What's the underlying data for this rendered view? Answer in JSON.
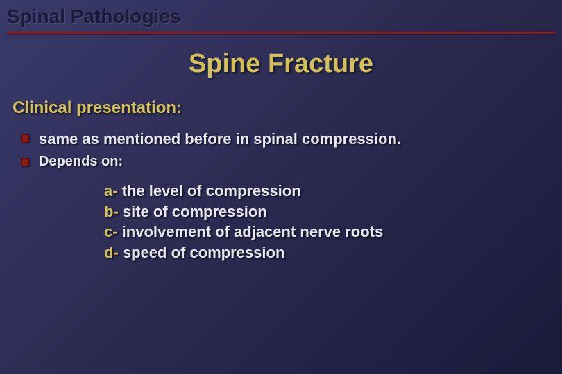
{
  "colors": {
    "background_gradient_start": "#3a3a6a",
    "background_gradient_mid": "#2a2a50",
    "background_gradient_end": "#1a1a3a",
    "accent_yellow": "#d4c05a",
    "accent_red": "#8b1a1a",
    "text_light": "#e8e8f0",
    "header_dark": "#1a1a3a"
  },
  "typography": {
    "header_fontsize": 28,
    "title_fontsize": 38,
    "section_fontsize": 24,
    "bullet_fontsize": 22,
    "sub_fontsize": 22,
    "font_family": "Arial",
    "font_weight": "bold"
  },
  "header": {
    "title": "Spinal Pathologies"
  },
  "main_title": "Spine Fracture",
  "section_label": "Clinical presentation:",
  "bullets": [
    {
      "text": "same as mentioned before in spinal compression."
    },
    {
      "text": "Depends on:"
    }
  ],
  "sub_items": [
    {
      "prefix": "a-",
      "text": " the level of compression"
    },
    {
      "prefix": "b-",
      "text": " site of compression"
    },
    {
      "prefix": "c-",
      "text": " involvement of adjacent nerve roots"
    },
    {
      "prefix": "d-",
      "text": " speed of compression"
    }
  ]
}
